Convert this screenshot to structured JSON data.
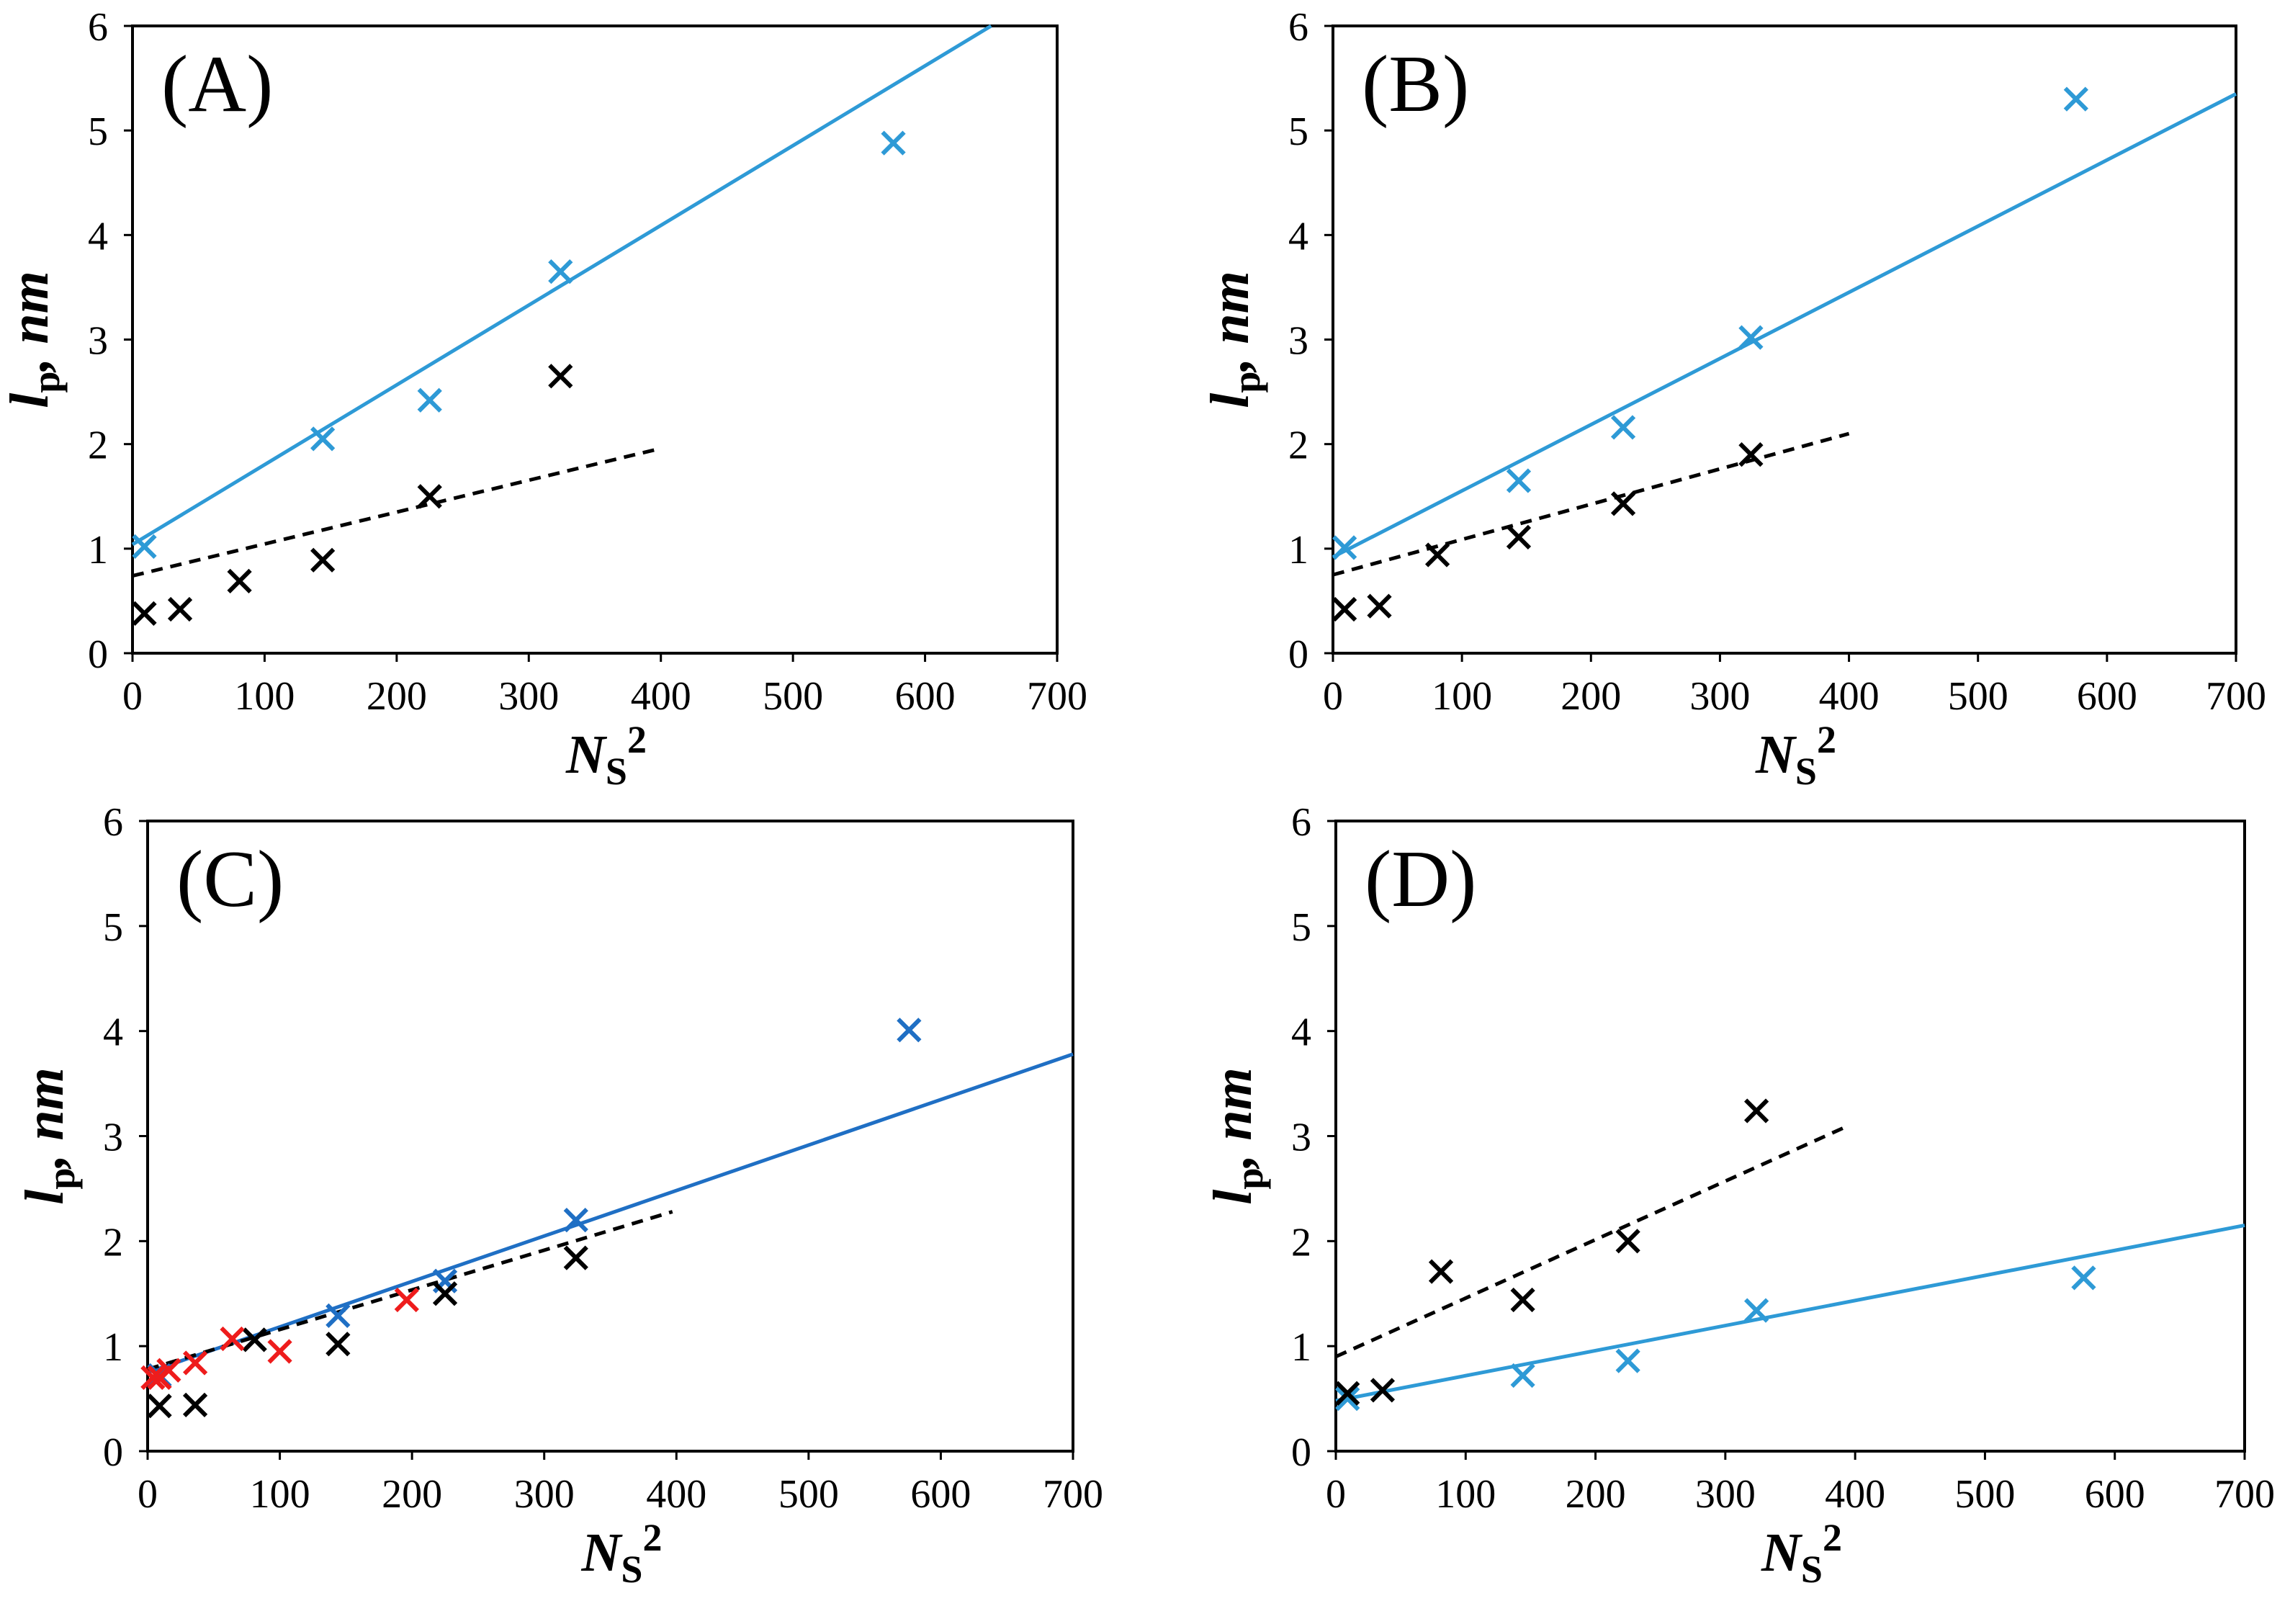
{
  "chart_data": [
    {
      "type": "scatter",
      "panel_label": "(A)",
      "xlabel": {
        "main": "N",
        "sub": "S",
        "sup": "2"
      },
      "ylabel": {
        "main": "l",
        "sub": "p",
        "rest": ", nm"
      },
      "xlim": [
        0,
        700
      ],
      "ylim": [
        0,
        6
      ],
      "xticks": [
        "0",
        "100",
        "200",
        "300",
        "400",
        "500",
        "600",
        "700"
      ],
      "yticks": [
        "0",
        "1",
        "2",
        "3",
        "4",
        "5",
        "6"
      ],
      "series": [
        {
          "name": "blue",
          "color": "#2e9ad6",
          "marker": "x",
          "points": [
            [
              9,
              1.02
            ],
            [
              144,
              2.05
            ],
            [
              225,
              2.42
            ],
            [
              324,
              3.65
            ],
            [
              576,
              4.88
            ]
          ]
        },
        {
          "name": "black",
          "color": "#000000",
          "marker": "x",
          "points": [
            [
              9,
              0.38
            ],
            [
              36,
              0.42
            ],
            [
              81,
              0.69
            ],
            [
              144,
              0.89
            ],
            [
              225,
              1.5
            ],
            [
              324,
              2.65
            ]
          ]
        }
      ],
      "fits": [
        {
          "color": "#2e9ad6",
          "dashed": false,
          "x": [
            0,
            650
          ],
          "y": [
            1.04,
            6.0
          ]
        },
        {
          "color": "#000000",
          "dashed": true,
          "x": [
            0,
            397
          ],
          "y": [
            0.74,
            1.95
          ]
        }
      ]
    },
    {
      "type": "scatter",
      "panel_label": "(B)",
      "xlabel": {
        "main": "N",
        "sub": "S",
        "sup": "2"
      },
      "ylabel": {
        "main": "l",
        "sub": "p",
        "rest": ", nm"
      },
      "xlim": [
        0,
        700
      ],
      "ylim": [
        0,
        6
      ],
      "xticks": [
        "0",
        "100",
        "200",
        "300",
        "400",
        "500",
        "600",
        "700"
      ],
      "yticks": [
        "0",
        "1",
        "2",
        "3",
        "4",
        "5",
        "6"
      ],
      "series": [
        {
          "name": "blue",
          "color": "#2e9ad6",
          "marker": "x",
          "points": [
            [
              9,
              1.01
            ],
            [
              144,
              1.65
            ],
            [
              225,
              2.16
            ],
            [
              324,
              3.02
            ],
            [
              576,
              5.3
            ]
          ]
        },
        {
          "name": "black",
          "color": "#000000",
          "marker": "x",
          "points": [
            [
              9,
              0.42
            ],
            [
              36,
              0.45
            ],
            [
              81,
              0.94
            ],
            [
              144,
              1.11
            ],
            [
              225,
              1.43
            ],
            [
              324,
              1.9
            ]
          ]
        }
      ],
      "fits": [
        {
          "color": "#2e9ad6",
          "dashed": false,
          "x": [
            0,
            700
          ],
          "y": [
            0.92,
            5.35
          ]
        },
        {
          "color": "#000000",
          "dashed": true,
          "x": [
            0,
            400
          ],
          "y": [
            0.75,
            2.1
          ]
        }
      ]
    },
    {
      "type": "scatter",
      "panel_label": "(C)",
      "xlabel": {
        "main": "N",
        "sub": "S",
        "sup": "2"
      },
      "ylabel": {
        "main": "l",
        "sub": "p",
        "rest": ", nm"
      },
      "xlim": [
        0,
        700
      ],
      "ylim": [
        0,
        6
      ],
      "xticks": [
        "0",
        "100",
        "200",
        "300",
        "400",
        "500",
        "600",
        "700"
      ],
      "yticks": [
        "0",
        "1",
        "2",
        "3",
        "4",
        "5",
        "6"
      ],
      "series": [
        {
          "name": "blue",
          "color": "#1f6fc4",
          "marker": "x",
          "points": [
            [
              9,
              0.72
            ],
            [
              144,
              1.29
            ],
            [
              225,
              1.62
            ],
            [
              324,
              2.2
            ],
            [
              576,
              4.01
            ]
          ]
        },
        {
          "name": "black",
          "color": "#000000",
          "marker": "x",
          "points": [
            [
              9,
              0.43
            ],
            [
              36,
              0.44
            ],
            [
              81,
              1.06
            ],
            [
              144,
              1.02
            ],
            [
              225,
              1.5
            ],
            [
              324,
              1.84
            ]
          ]
        },
        {
          "name": "red",
          "color": "#ee1c1c",
          "marker": "x",
          "points": [
            [
              4,
              0.7
            ],
            [
              9,
              0.7
            ],
            [
              16,
              0.77
            ],
            [
              36,
              0.84
            ],
            [
              64,
              1.07
            ],
            [
              100,
              0.95
            ],
            [
              196,
              1.44
            ]
          ]
        }
      ],
      "fits": [
        {
          "color": "#1f6fc4",
          "dashed": false,
          "x": [
            0,
            700
          ],
          "y": [
            0.75,
            3.78
          ]
        },
        {
          "color": "#000000",
          "dashed": true,
          "x": [
            0,
            397
          ],
          "y": [
            0.78,
            2.28
          ]
        }
      ]
    },
    {
      "type": "scatter",
      "panel_label": "(D)",
      "xlabel": {
        "main": "N",
        "sub": "S",
        "sup": "2"
      },
      "ylabel": {
        "main": "l",
        "sub": "p",
        "rest": ", nm"
      },
      "xlim": [
        0,
        700
      ],
      "ylim": [
        0,
        6
      ],
      "xticks": [
        "0",
        "100",
        "200",
        "300",
        "400",
        "500",
        "600",
        "700"
      ],
      "yticks": [
        "0",
        "1",
        "2",
        "3",
        "4",
        "5",
        "6"
      ],
      "series": [
        {
          "name": "blue",
          "color": "#2e9ad6",
          "marker": "x",
          "points": [
            [
              9,
              0.5
            ],
            [
              144,
              0.72
            ],
            [
              225,
              0.86
            ],
            [
              324,
              1.34
            ],
            [
              576,
              1.65
            ]
          ]
        },
        {
          "name": "black",
          "color": "#000000",
          "marker": "x",
          "points": [
            [
              9,
              0.55
            ],
            [
              36,
              0.58
            ],
            [
              81,
              1.71
            ],
            [
              144,
              1.44
            ],
            [
              225,
              2.0
            ],
            [
              324,
              3.24
            ]
          ]
        }
      ],
      "fits": [
        {
          "color": "#2e9ad6",
          "dashed": false,
          "x": [
            0,
            700
          ],
          "y": [
            0.48,
            2.15
          ]
        },
        {
          "color": "#000000",
          "dashed": true,
          "x": [
            0,
            395
          ],
          "y": [
            0.9,
            3.1
          ]
        }
      ]
    }
  ]
}
